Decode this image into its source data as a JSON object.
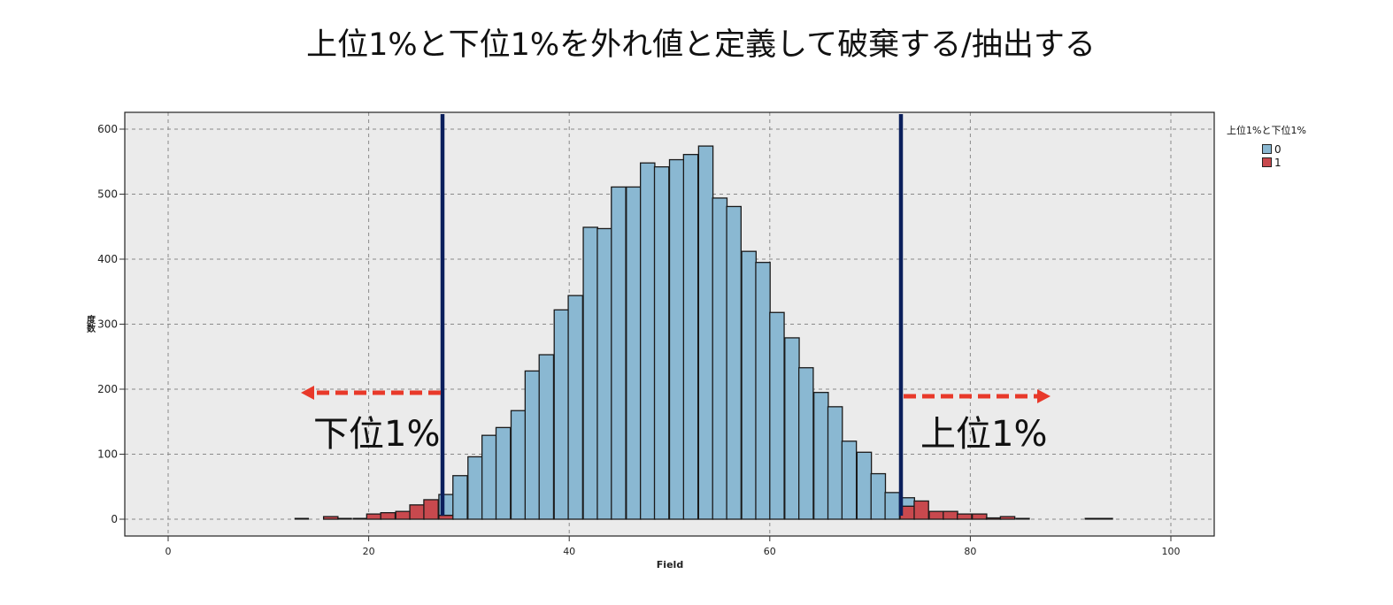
{
  "title": "上位1%と下位1%を外れ値と定義して破棄する/抽出する",
  "legend": {
    "title": "上位1%と下位1%",
    "items": [
      {
        "label": "0",
        "color": "#8ab8d2"
      },
      {
        "label": "1",
        "color": "#c8494e"
      }
    ]
  },
  "annotations": {
    "lower_label": "下位1%",
    "upper_label": "上位1%",
    "arrow_color": "#e8392a",
    "cutoff_line_color": "#0b1f5c"
  },
  "chart_data": {
    "type": "bar",
    "subtype": "stacked histogram",
    "title": "上位1%と下位1%を外れ値と定義して破棄する/抽出する",
    "xlabel": "Field",
    "ylabel": "度数",
    "xlim": [
      -4.3,
      104.4
    ],
    "ylim": [
      -26,
      626
    ],
    "xticks": [
      0,
      20,
      40,
      60,
      80,
      100
    ],
    "yticks": [
      0,
      100,
      200,
      300,
      400,
      500,
      600
    ],
    "grid": true,
    "legend_position": "right",
    "bin_width": 1.435,
    "cutoffs": {
      "lower": 27.3,
      "upper": 73.1
    },
    "series": [
      {
        "name": "0",
        "color": "#8ab8d2"
      },
      {
        "name": "1",
        "color": "#c8494e"
      }
    ],
    "bins": [
      {
        "x": 12.6,
        "s0": 0,
        "s1": 1
      },
      {
        "x": 15.5,
        "s0": 0,
        "s1": 4
      },
      {
        "x": 16.9,
        "s0": 0,
        "s1": 1
      },
      {
        "x": 18.4,
        "s0": 0,
        "s1": 1
      },
      {
        "x": 19.8,
        "s0": 0,
        "s1": 8
      },
      {
        "x": 21.2,
        "s0": 0,
        "s1": 10
      },
      {
        "x": 22.7,
        "s0": 0,
        "s1": 12
      },
      {
        "x": 24.1,
        "s0": 0,
        "s1": 22
      },
      {
        "x": 25.5,
        "s0": 0,
        "s1": 30
      },
      {
        "x": 27.0,
        "s0": 32,
        "s1": 6
      },
      {
        "x": 28.4,
        "s0": 67,
        "s1": 0
      },
      {
        "x": 29.9,
        "s0": 96,
        "s1": 0
      },
      {
        "x": 31.3,
        "s0": 129,
        "s1": 0
      },
      {
        "x": 32.7,
        "s0": 141,
        "s1": 0
      },
      {
        "x": 34.2,
        "s0": 167,
        "s1": 0
      },
      {
        "x": 35.6,
        "s0": 228,
        "s1": 0
      },
      {
        "x": 37.0,
        "s0": 253,
        "s1": 0
      },
      {
        "x": 38.5,
        "s0": 322,
        "s1": 0
      },
      {
        "x": 39.9,
        "s0": 344,
        "s1": 0
      },
      {
        "x": 41.4,
        "s0": 449,
        "s1": 0
      },
      {
        "x": 42.8,
        "s0": 447,
        "s1": 0
      },
      {
        "x": 44.2,
        "s0": 511,
        "s1": 0
      },
      {
        "x": 45.7,
        "s0": 511,
        "s1": 0
      },
      {
        "x": 47.1,
        "s0": 548,
        "s1": 0
      },
      {
        "x": 48.5,
        "s0": 542,
        "s1": 0
      },
      {
        "x": 50.0,
        "s0": 553,
        "s1": 0
      },
      {
        "x": 51.4,
        "s0": 561,
        "s1": 0
      },
      {
        "x": 52.9,
        "s0": 574,
        "s1": 0
      },
      {
        "x": 54.3,
        "s0": 494,
        "s1": 0
      },
      {
        "x": 55.7,
        "s0": 481,
        "s1": 0
      },
      {
        "x": 57.2,
        "s0": 412,
        "s1": 0
      },
      {
        "x": 58.6,
        "s0": 395,
        "s1": 0
      },
      {
        "x": 60.0,
        "s0": 318,
        "s1": 0
      },
      {
        "x": 61.5,
        "s0": 279,
        "s1": 0
      },
      {
        "x": 62.9,
        "s0": 233,
        "s1": 0
      },
      {
        "x": 64.4,
        "s0": 195,
        "s1": 0
      },
      {
        "x": 65.8,
        "s0": 173,
        "s1": 0
      },
      {
        "x": 67.2,
        "s0": 120,
        "s1": 0
      },
      {
        "x": 68.7,
        "s0": 103,
        "s1": 0
      },
      {
        "x": 70.1,
        "s0": 70,
        "s1": 0
      },
      {
        "x": 71.5,
        "s0": 41,
        "s1": 0
      },
      {
        "x": 73.0,
        "s0": 13,
        "s1": 20
      },
      {
        "x": 74.4,
        "s0": 0,
        "s1": 28
      },
      {
        "x": 75.9,
        "s0": 0,
        "s1": 12
      },
      {
        "x": 77.3,
        "s0": 0,
        "s1": 12
      },
      {
        "x": 78.7,
        "s0": 0,
        "s1": 8
      },
      {
        "x": 80.2,
        "s0": 0,
        "s1": 8
      },
      {
        "x": 81.6,
        "s0": 0,
        "s1": 2
      },
      {
        "x": 83.0,
        "s0": 0,
        "s1": 4
      },
      {
        "x": 84.5,
        "s0": 0,
        "s1": 1
      },
      {
        "x": 91.4,
        "s0": 0,
        "s1": 1
      },
      {
        "x": 92.8,
        "s0": 0,
        "s1": 1
      }
    ]
  }
}
